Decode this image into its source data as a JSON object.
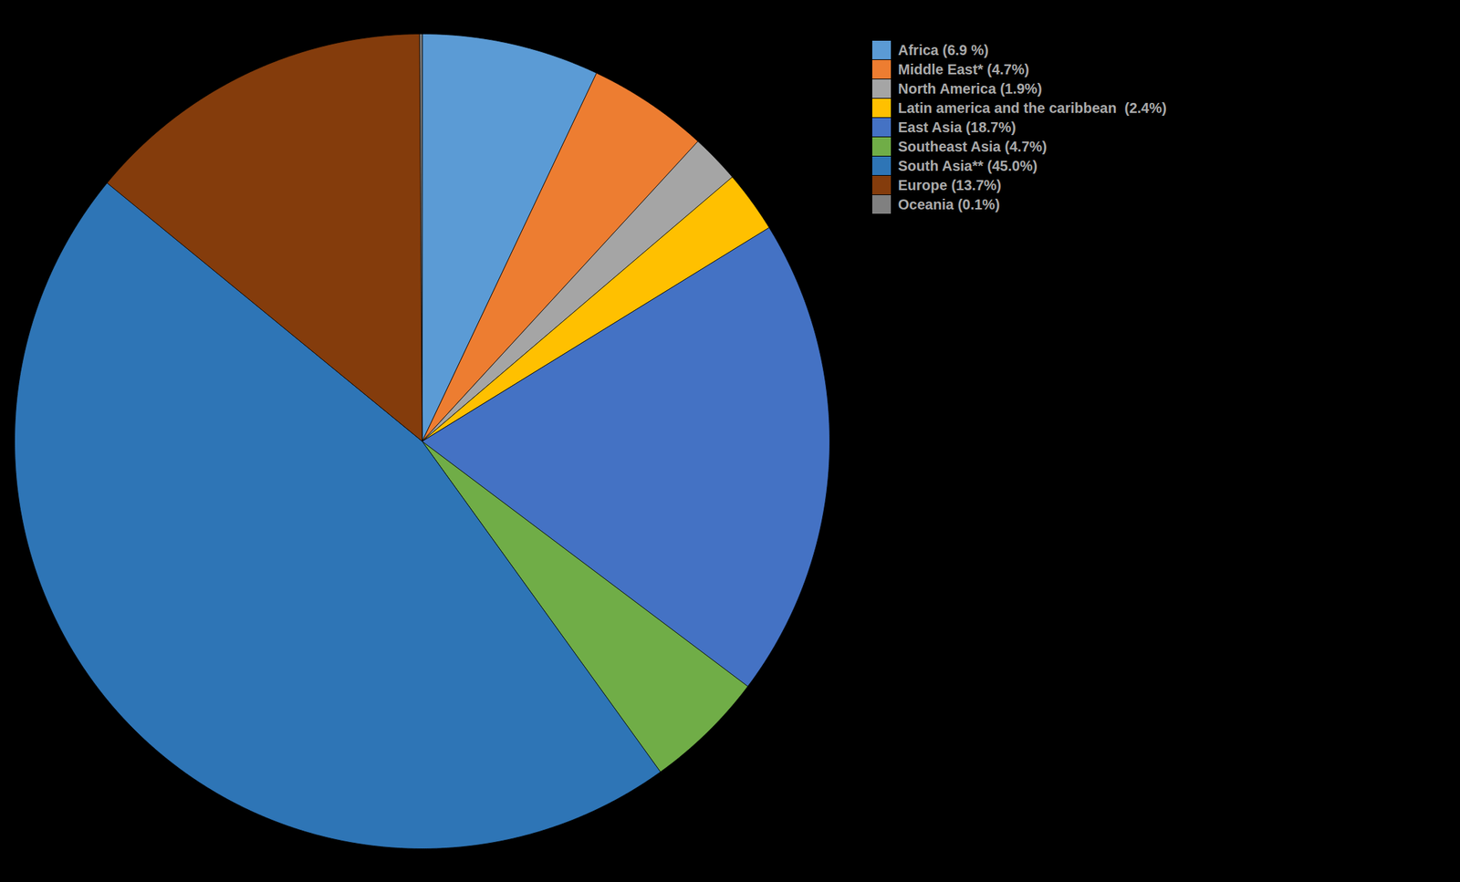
{
  "chart_data": {
    "type": "pie",
    "categories": [
      "Africa (6.9 %)",
      "Middle East* (4.7%)",
      "North America (1.9%)",
      "Latin america and the caribbean  (2.4%)",
      "East Asia (18.7%)",
      "Southeast Asia (4.7%)",
      "South Asia** (45.0%)",
      "Europe (13.7%)",
      "Oceania (0.1%)"
    ],
    "values": [
      6.9,
      4.7,
      1.9,
      2.4,
      18.7,
      4.7,
      45.0,
      13.7,
      0.1
    ],
    "colors": [
      "#5B9BD5",
      "#ED7D31",
      "#A5A5A5",
      "#FFC000",
      "#4472C4",
      "#70AD47",
      "#2E75B6",
      "#843C0C",
      "#808080"
    ],
    "legend": "right"
  }
}
